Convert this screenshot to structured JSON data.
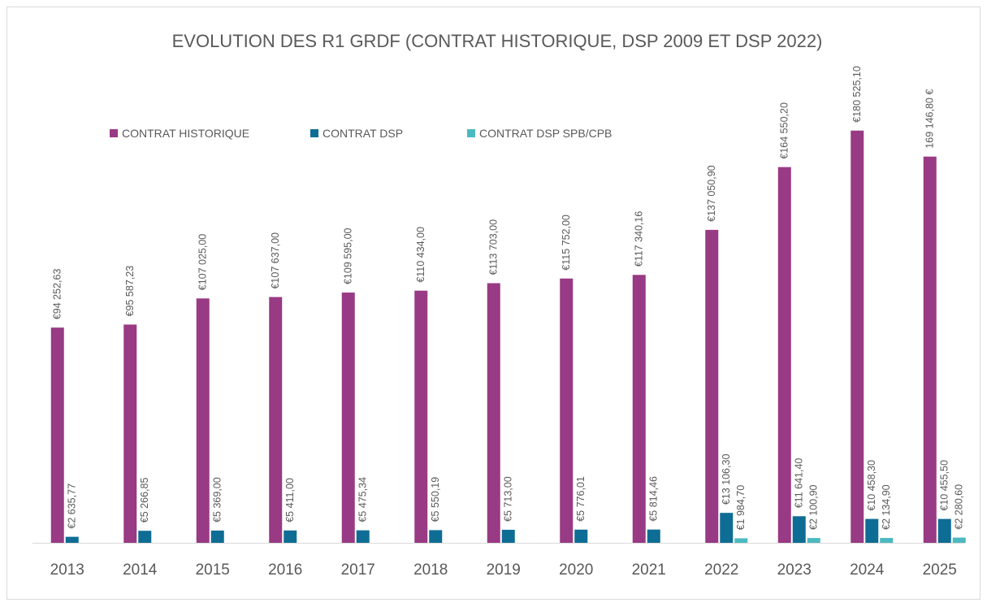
{
  "chart_data": {
    "type": "bar",
    "title": "EVOLUTION DES R1 GRDF (CONTRAT HISTORIQUE, DSP 2009 ET DSP 2022)",
    "categories": [
      "2013",
      "2014",
      "2015",
      "2016",
      "2017",
      "2018",
      "2019",
      "2020",
      "2021",
      "2022",
      "2023",
      "2024",
      "2025"
    ],
    "ylim": [
      0,
      200000
    ],
    "legend": "top-left",
    "series": [
      {
        "name": "CONTRAT HISTORIQUE",
        "color": "#983a84",
        "values": [
          94252.63,
          95587.23,
          107025.0,
          107637.0,
          109595.0,
          110434.0,
          113703.0,
          115752.0,
          117340.16,
          137050.9,
          164550.2,
          180525.1,
          169146.8
        ],
        "value_labels": [
          "€94 252,63",
          "€95 587,23",
          "€107 025,00",
          "€107 637,00",
          "€109 595,00",
          "€110 434,00",
          "€113 703,00",
          "€115 752,00",
          "€117 340,16",
          "€137 050,90",
          "€164 550,20",
          "€180 525,10",
          "169 146,80 €"
        ]
      },
      {
        "name": "CONTRAT DSP",
        "color": "#0e6d94",
        "values": [
          2635.77,
          5266.85,
          5369.0,
          5411.0,
          5475.34,
          5550.19,
          5713.0,
          5776.01,
          5814.46,
          13106.3,
          11641.4,
          10458.3,
          10455.5
        ],
        "value_labels": [
          "€2 635,77",
          "€5 266,85",
          "€5 369,00",
          "€5 411,00",
          "€5 475,34",
          "€5 550,19",
          "€5 713,00",
          "€5 776,01",
          "€5 814,46",
          "€13 106,30",
          "€11 641,40",
          "€10 458,30",
          "€10 455,50"
        ]
      },
      {
        "name": "CONTRAT DSP SPB/CPB",
        "color": "#4bbac0",
        "values": [
          null,
          null,
          null,
          null,
          null,
          null,
          null,
          null,
          null,
          1984.7,
          2100.9,
          2134.9,
          2280.6
        ],
        "value_labels": [
          null,
          null,
          null,
          null,
          null,
          null,
          null,
          null,
          null,
          "€1 984,70",
          "€2 100,90",
          "€2 134,90",
          "€2 280,60"
        ]
      }
    ]
  }
}
